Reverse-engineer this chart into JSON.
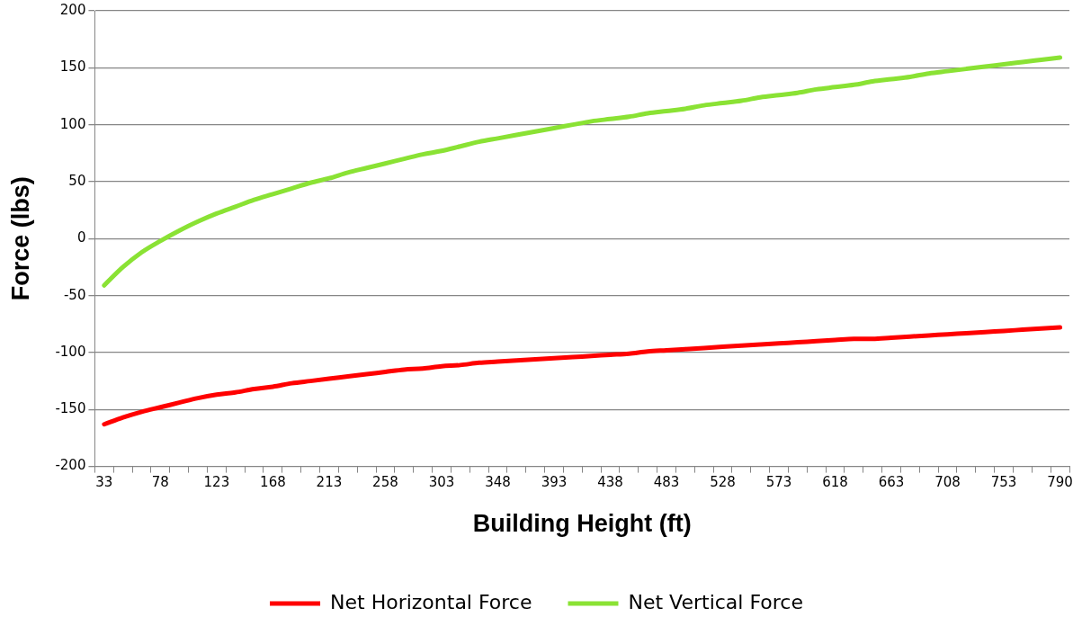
{
  "chart_data": {
    "type": "line",
    "xlabel": "Building Height (ft)",
    "ylabel": "Force (lbs)",
    "categories": [
      "33",
      null,
      null,
      "78",
      null,
      null,
      "123",
      null,
      null,
      "168",
      null,
      null,
      "213",
      null,
      null,
      "258",
      null,
      null,
      "303",
      null,
      null,
      "348",
      null,
      null,
      "393",
      null,
      null,
      "438",
      null,
      null,
      "483",
      null,
      null,
      "528",
      null,
      null,
      "573",
      null,
      null,
      "618",
      null,
      null,
      "663",
      null,
      null,
      "708",
      null,
      null,
      "753",
      null,
      null,
      "790"
    ],
    "series": [
      {
        "name": "Net Horizontal Force",
        "color": "#ff0000",
        "values": [
          -163,
          -157,
          -152,
          -148,
          -144,
          -140,
          -137,
          -135,
          -132,
          -130,
          -127,
          -125,
          -123,
          -121,
          -119,
          -117,
          -115,
          -114,
          -112,
          -111,
          -109,
          -108,
          -107,
          -106,
          -105,
          -104,
          -103,
          -102,
          -101,
          -99,
          -98,
          -97,
          -96,
          -95,
          -94,
          -93,
          -92,
          -91,
          -90,
          -89,
          -88,
          -88,
          -87,
          -86,
          -85,
          -84,
          -83,
          -82,
          -81,
          -80,
          -79,
          -78
        ]
      },
      {
        "name": "Net Vertical Force",
        "color": "#8ae234",
        "values": [
          -41,
          -25,
          -12,
          -2,
          7,
          15,
          22,
          28,
          34,
          39,
          44,
          49,
          53,
          58,
          62,
          66,
          70,
          74,
          77,
          81,
          85,
          88,
          91,
          94,
          97,
          100,
          103,
          105,
          107,
          110,
          112,
          114,
          117,
          119,
          121,
          124,
          126,
          128,
          131,
          133,
          135,
          138,
          140,
          142,
          145,
          147,
          149,
          151,
          153,
          155,
          157,
          159
        ]
      }
    ],
    "ylim": [
      -200,
      200
    ],
    "yticks": [
      -200,
      -150,
      -100,
      -50,
      0,
      50,
      100,
      150,
      200
    ],
    "grid": "y",
    "legend": "bottom",
    "marker": "none",
    "line_style": "solid"
  }
}
